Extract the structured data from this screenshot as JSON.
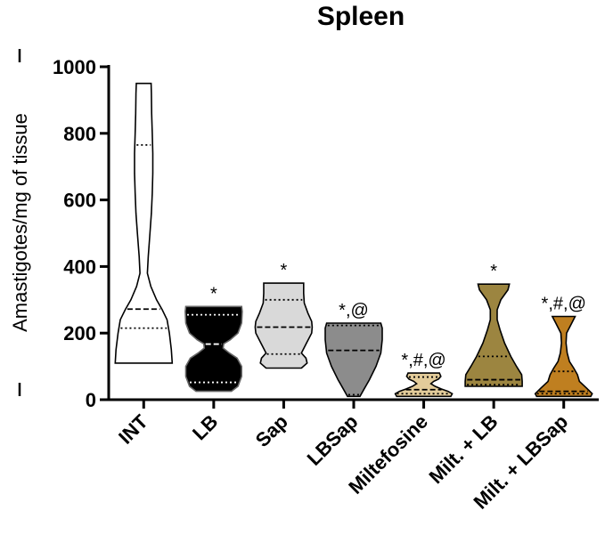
{
  "chart_data": {
    "type": "violin",
    "title": "Spleen",
    "ylabel": "Amastigotes/mg of tissue",
    "ylim": [
      0,
      1000
    ],
    "yticks": [
      0,
      200,
      400,
      600,
      800,
      1000
    ],
    "categories": [
      "INT",
      "LB",
      "Sap",
      "LBSap",
      "Miltefosine",
      "Milt. + LB",
      "Milt. + LBSap"
    ],
    "groups": [
      {
        "name": "INT",
        "fill": "#ffffff",
        "min": 110,
        "max": 950,
        "q1": 215,
        "median": 272,
        "q3": 765,
        "annotation": "",
        "profile": [
          [
            110,
            1.0
          ],
          [
            150,
            0.97
          ],
          [
            200,
            0.9
          ],
          [
            240,
            0.82
          ],
          [
            270,
            0.65
          ],
          [
            300,
            0.45
          ],
          [
            340,
            0.25
          ],
          [
            380,
            0.13
          ],
          [
            430,
            0.16
          ],
          [
            500,
            0.22
          ],
          [
            560,
            0.27
          ],
          [
            620,
            0.3
          ],
          [
            680,
            0.32
          ],
          [
            740,
            0.32
          ],
          [
            800,
            0.3
          ],
          [
            860,
            0.28
          ],
          [
            920,
            0.27
          ],
          [
            950,
            0.26
          ]
        ]
      },
      {
        "name": "LB",
        "fill": "#000000",
        "min": 25,
        "max": 280,
        "q1": 52,
        "median": 167,
        "q3": 255,
        "annotation": "*",
        "profile": [
          [
            25,
            0.62
          ],
          [
            40,
            0.85
          ],
          [
            70,
            0.98
          ],
          [
            100,
            0.98
          ],
          [
            125,
            0.82
          ],
          [
            140,
            0.55
          ],
          [
            155,
            0.33
          ],
          [
            168,
            0.35
          ],
          [
            180,
            0.58
          ],
          [
            200,
            0.85
          ],
          [
            230,
            0.98
          ],
          [
            265,
            1.0
          ],
          [
            280,
            0.98
          ]
        ]
      },
      {
        "name": "Sap",
        "fill": "#d9d9d9",
        "min": 95,
        "max": 350,
        "q1": 137,
        "median": 218,
        "q3": 300,
        "annotation": "*",
        "profile": [
          [
            95,
            0.62
          ],
          [
            110,
            0.82
          ],
          [
            125,
            0.78
          ],
          [
            140,
            0.62
          ],
          [
            170,
            0.8
          ],
          [
            200,
            0.98
          ],
          [
            218,
            1.0
          ],
          [
            235,
            0.98
          ],
          [
            260,
            0.85
          ],
          [
            290,
            0.72
          ],
          [
            320,
            0.7
          ],
          [
            350,
            0.7
          ]
        ]
      },
      {
        "name": "LBSap",
        "fill": "#8c8c8c",
        "min": 10,
        "max": 230,
        "q1": 15,
        "median": 148,
        "q3": 223,
        "annotation": "*,@",
        "profile": [
          [
            10,
            0.22
          ],
          [
            30,
            0.35
          ],
          [
            60,
            0.55
          ],
          [
            100,
            0.78
          ],
          [
            140,
            0.95
          ],
          [
            180,
            1.0
          ],
          [
            215,
            1.0
          ],
          [
            230,
            0.95
          ]
        ]
      },
      {
        "name": "Miltefosine",
        "fill": "#e3cc9a",
        "min": 10,
        "max": 80,
        "q1": 18,
        "median": 30,
        "q3": 68,
        "annotation": "*,#,@",
        "profile": [
          [
            10,
            0.95
          ],
          [
            18,
            1.0
          ],
          [
            25,
            0.85
          ],
          [
            32,
            0.62
          ],
          [
            40,
            0.4
          ],
          [
            48,
            0.25
          ],
          [
            55,
            0.35
          ],
          [
            62,
            0.52
          ],
          [
            70,
            0.6
          ],
          [
            80,
            0.55
          ]
        ]
      },
      {
        "name": "Milt. + LB",
        "fill": "#9c8540",
        "min": 40,
        "max": 347,
        "q1": 45,
        "median": 60,
        "q3": 130,
        "annotation": "*",
        "profile": [
          [
            40,
            1.0
          ],
          [
            55,
            1.0
          ],
          [
            75,
            0.98
          ],
          [
            100,
            0.8
          ],
          [
            130,
            0.6
          ],
          [
            170,
            0.38
          ],
          [
            210,
            0.22
          ],
          [
            240,
            0.12
          ],
          [
            270,
            0.12
          ],
          [
            300,
            0.25
          ],
          [
            330,
            0.5
          ],
          [
            347,
            0.55
          ]
        ]
      },
      {
        "name": "Milt. + LBSap",
        "fill": "#bf7f20",
        "min": 10,
        "max": 250,
        "q1": 18,
        "median": 25,
        "q3": 85,
        "annotation": "*,#,@",
        "profile": [
          [
            10,
            0.95
          ],
          [
            18,
            1.0
          ],
          [
            35,
            0.8
          ],
          [
            55,
            0.55
          ],
          [
            75,
            0.48
          ],
          [
            95,
            0.35
          ],
          [
            115,
            0.2
          ],
          [
            140,
            0.12
          ],
          [
            170,
            0.08
          ],
          [
            200,
            0.1
          ],
          [
            230,
            0.28
          ],
          [
            250,
            0.4
          ]
        ]
      }
    ]
  }
}
